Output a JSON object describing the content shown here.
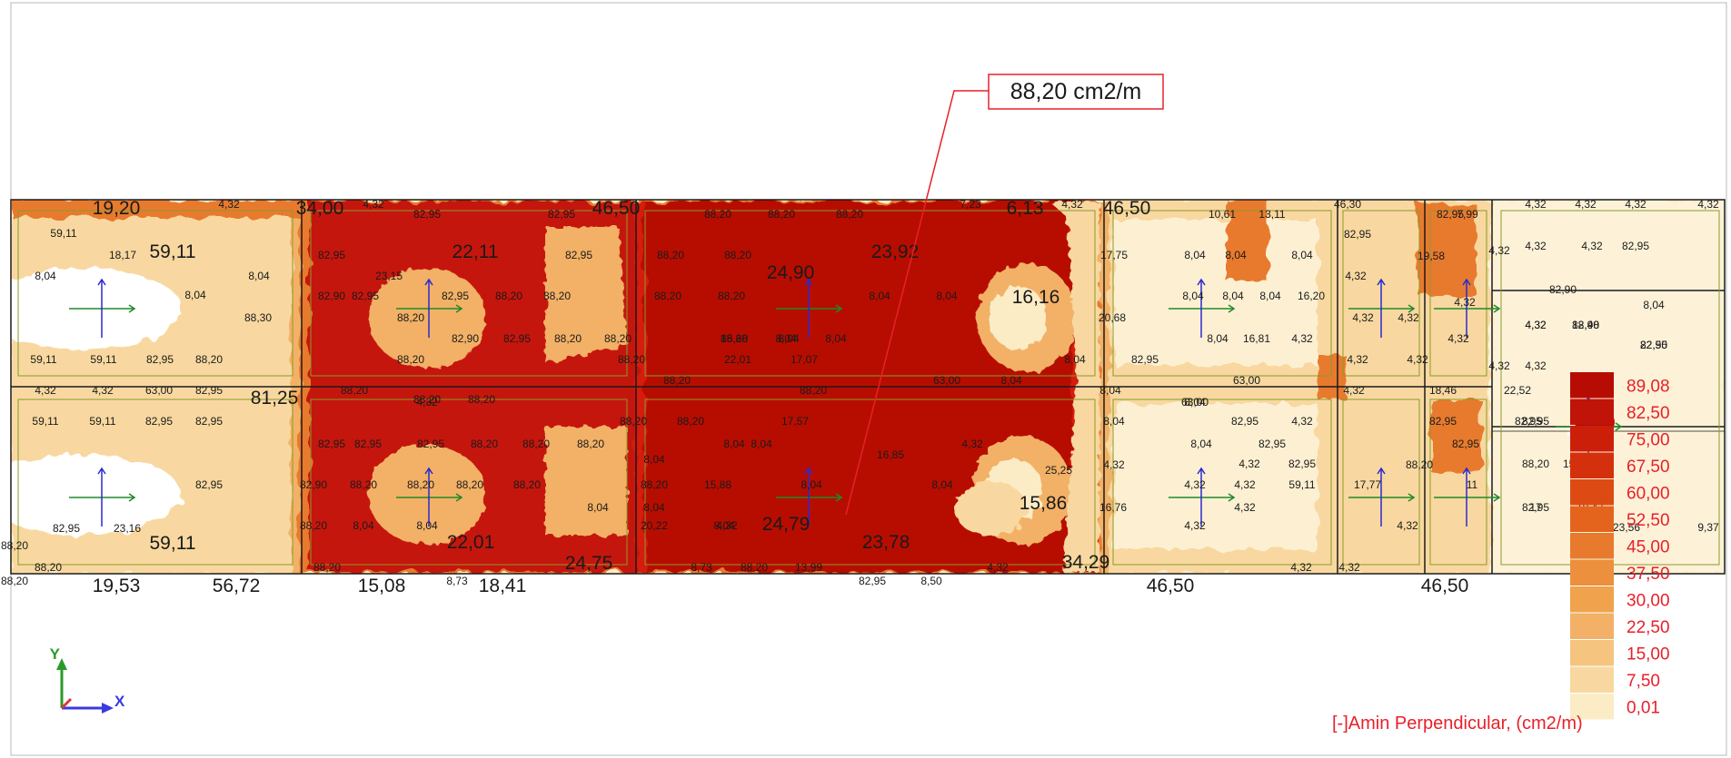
{
  "callout": {
    "text": "88,20 cm2/m"
  },
  "colors": {
    "dark_red": "#b70c04",
    "red": "#d51d0b",
    "orange": "#e87a2d",
    "light_orange": "#f2b166",
    "pale": "#f8d8a0",
    "cream": "#fbecc6",
    "border": "#1a1a1a",
    "outline": "#8a9a2a",
    "legend_text": "#e8202a"
  },
  "legend": {
    "values": [
      "89,08",
      "82,50",
      "75,00",
      "67,50",
      "60,00",
      "52,50",
      "45,00",
      "37,50",
      "30,00",
      "22,50",
      "15,00",
      "7,50",
      "0,01"
    ],
    "title": "[-]Amin Perpendicular, (cm2/m)"
  },
  "axis": {
    "y_label": "Y",
    "x_label": "X"
  },
  "large_labels": [
    {
      "t": "19,20"
    },
    {
      "t": "34,00"
    },
    {
      "t": "46,50"
    },
    {
      "t": "6,13"
    },
    {
      "t": "46,50"
    },
    {
      "t": "59,11"
    },
    {
      "t": "22,11"
    },
    {
      "t": "24,90"
    },
    {
      "t": "23,92"
    },
    {
      "t": "16,16"
    },
    {
      "t": "81,25"
    },
    {
      "t": "15,86"
    },
    {
      "t": "24,79"
    },
    {
      "t": "23,78"
    },
    {
      "t": "59,11"
    },
    {
      "t": "22,01"
    },
    {
      "t": "24,75"
    },
    {
      "t": "34,29"
    },
    {
      "t": "19,53"
    },
    {
      "t": "56,72"
    },
    {
      "t": "15,08"
    },
    {
      "t": "18,41"
    },
    {
      "t": "46,50"
    },
    {
      "t": "46,50"
    }
  ],
  "small_labels": [
    {
      "t": "4,32"
    },
    {
      "t": "4,32"
    },
    {
      "t": "82,95"
    },
    {
      "t": "82,95"
    },
    {
      "t": "88,20"
    },
    {
      "t": "88,20"
    },
    {
      "t": "88,20"
    },
    {
      "t": "7,23"
    },
    {
      "t": "4,32"
    },
    {
      "t": "10,61"
    },
    {
      "t": "13,11"
    },
    {
      "t": "46,30"
    },
    {
      "t": "82,95"
    },
    {
      "t": "7,99"
    },
    {
      "t": "4,32"
    },
    {
      "t": "4,32"
    },
    {
      "t": "4,32"
    },
    {
      "t": "4,32"
    },
    {
      "t": "59,11"
    },
    {
      "t": "18,17"
    },
    {
      "t": "8,04"
    },
    {
      "t": "8,04"
    },
    {
      "t": "8,04"
    },
    {
      "t": "82,95"
    },
    {
      "t": "23,15"
    },
    {
      "t": "82,95"
    },
    {
      "t": "88,20"
    },
    {
      "t": "88,20"
    },
    {
      "t": "17,75"
    },
    {
      "t": "8,04"
    },
    {
      "t": "8,04"
    },
    {
      "t": "8,04"
    },
    {
      "t": "82,95"
    },
    {
      "t": "19,58"
    },
    {
      "t": "4,32"
    },
    {
      "t": "4,32"
    },
    {
      "t": "4,32"
    },
    {
      "t": "82,95"
    },
    {
      "t": "82,90"
    },
    {
      "t": "82,95"
    },
    {
      "t": "82,95"
    },
    {
      "t": "88,20"
    },
    {
      "t": "88,20"
    },
    {
      "t": "88,20"
    },
    {
      "t": "88,20"
    },
    {
      "t": "8,04"
    },
    {
      "t": "8,04"
    },
    {
      "t": "8,04"
    },
    {
      "t": "8,04"
    },
    {
      "t": "8,04"
    },
    {
      "t": "16,20"
    },
    {
      "t": "4,32"
    },
    {
      "t": "4,32"
    },
    {
      "t": "82,90"
    },
    {
      "t": "8,04"
    },
    {
      "t": "88,20"
    },
    {
      "t": "88,30"
    },
    {
      "t": "15,68"
    },
    {
      "t": "8,04"
    },
    {
      "t": "20,68"
    },
    {
      "t": "4,32"
    },
    {
      "t": "4,32"
    },
    {
      "t": "4,32"
    },
    {
      "t": "82,90"
    },
    {
      "t": "82,90"
    },
    {
      "t": "82,90"
    },
    {
      "t": "82,95"
    },
    {
      "t": "88,20"
    },
    {
      "t": "88,20"
    },
    {
      "t": "88,20"
    },
    {
      "t": "8,04"
    },
    {
      "t": "8,04"
    },
    {
      "t": "8,04"
    },
    {
      "t": "16,81"
    },
    {
      "t": "4,32"
    },
    {
      "t": "4,32"
    },
    {
      "t": "4,32"
    },
    {
      "t": "18,48"
    },
    {
      "t": "22,55"
    },
    {
      "t": "59,11"
    },
    {
      "t": "59,11"
    },
    {
      "t": "82,95"
    },
    {
      "t": "88,20"
    },
    {
      "t": "88,20"
    },
    {
      "t": "88,20"
    },
    {
      "t": "22,01"
    },
    {
      "t": "17,07"
    },
    {
      "t": "8,04"
    },
    {
      "t": "82,95"
    },
    {
      "t": "4,32"
    },
    {
      "t": "4,32"
    },
    {
      "t": "4,32"
    },
    {
      "t": "4,32"
    },
    {
      "t": "4,32"
    },
    {
      "t": "4,32"
    },
    {
      "t": "63,00"
    },
    {
      "t": "82,95"
    },
    {
      "t": "88,20"
    },
    {
      "t": "4,32"
    },
    {
      "t": "88,20"
    },
    {
      "t": "88,20"
    },
    {
      "t": "63,00"
    },
    {
      "t": "8,04"
    },
    {
      "t": "8,04"
    },
    {
      "t": "63,00"
    },
    {
      "t": "63,00"
    },
    {
      "t": "4,32"
    },
    {
      "t": "18,46"
    },
    {
      "t": "22,52"
    },
    {
      "t": "59,11"
    },
    {
      "t": "59,11"
    },
    {
      "t": "82,95"
    },
    {
      "t": "82,95"
    },
    {
      "t": "88,20"
    },
    {
      "t": "88,20"
    },
    {
      "t": "88,20"
    },
    {
      "t": "88,20"
    },
    {
      "t": "8,04"
    },
    {
      "t": "17,57"
    },
    {
      "t": "8,04"
    },
    {
      "t": "8,04"
    },
    {
      "t": "82,95"
    },
    {
      "t": "4,32"
    },
    {
      "t": "82,95"
    },
    {
      "t": "82,95"
    },
    {
      "t": "82,95"
    },
    {
      "t": "82,95"
    },
    {
      "t": "82,95"
    },
    {
      "t": "88,20"
    },
    {
      "t": "88,20"
    },
    {
      "t": "88,20"
    },
    {
      "t": "8,04"
    },
    {
      "t": "8,04"
    },
    {
      "t": "16,85"
    },
    {
      "t": "4,32"
    },
    {
      "t": "8,04"
    },
    {
      "t": "82,95"
    },
    {
      "t": "82,95"
    },
    {
      "t": "82,95"
    },
    {
      "t": "82,95"
    },
    {
      "t": "82,90"
    },
    {
      "t": "88,20"
    },
    {
      "t": "88,20"
    },
    {
      "t": "88,20"
    },
    {
      "t": "88,20"
    },
    {
      "t": "88,20"
    },
    {
      "t": "15,88"
    },
    {
      "t": "8,04"
    },
    {
      "t": "8,04"
    },
    {
      "t": "25,25"
    },
    {
      "t": "4,32"
    },
    {
      "t": "4,32"
    },
    {
      "t": "82,95"
    },
    {
      "t": "88,20"
    },
    {
      "t": "88,20"
    },
    {
      "t": "15,48"
    },
    {
      "t": "8,04"
    },
    {
      "t": "8,04"
    },
    {
      "t": "8,04"
    },
    {
      "t": "16,76"
    },
    {
      "t": "4,32"
    },
    {
      "t": "4,32"
    },
    {
      "t": "59,11"
    },
    {
      "t": "17,77"
    },
    {
      "t": "11"
    },
    {
      "t": "82,95"
    },
    {
      "t": "82,95"
    },
    {
      "t": "23,16"
    },
    {
      "t": "88,20"
    },
    {
      "t": "88,20"
    },
    {
      "t": "8,04"
    },
    {
      "t": "8,04"
    },
    {
      "t": "20,22"
    },
    {
      "t": "4,32"
    },
    {
      "t": "4,32"
    },
    {
      "t": "4,32"
    },
    {
      "t": "4,32"
    },
    {
      "t": "17"
    },
    {
      "t": "18,47"
    },
    {
      "t": "23,56"
    },
    {
      "t": "9,37"
    },
    {
      "t": "88,20"
    },
    {
      "t": "88,20"
    },
    {
      "t": "88,20"
    },
    {
      "t": "8,73"
    },
    {
      "t": "8,73"
    },
    {
      "t": "88,20"
    },
    {
      "t": "13,99"
    },
    {
      "t": "82,95"
    },
    {
      "t": "8,50"
    },
    {
      "t": "4,32"
    },
    {
      "t": "4,32"
    },
    {
      "t": "4,32"
    }
  ]
}
